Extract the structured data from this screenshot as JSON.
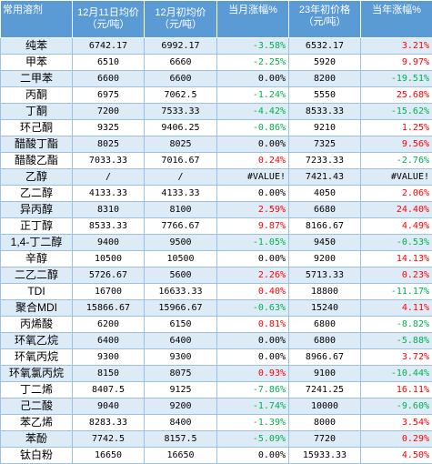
{
  "colors": {
    "header_bg": "#5b9bd5",
    "odd_row_bg": "#ddebf7",
    "even_row_bg": "#ffffff",
    "up": "#ff0000",
    "down": "#00b050"
  },
  "headers": [
    "常用溶剂",
    "12月11日均价（元/吨）",
    "12月初均价（元/吨）",
    "当月涨幅%",
    "23年初价格（元/吨）",
    "当年涨幅%"
  ],
  "rows": [
    {
      "name": "纯苯",
      "price_dec11": "6742.17",
      "price_dec_start": "6992.17",
      "mtd_change": "-3.58%",
      "price_23_start": "6532.17",
      "ytd_change": "3.21%"
    },
    {
      "name": "甲苯",
      "price_dec11": "6510",
      "price_dec_start": "6660",
      "mtd_change": "-2.25%",
      "price_23_start": "5920",
      "ytd_change": "9.97%"
    },
    {
      "name": "二甲苯",
      "price_dec11": "6600",
      "price_dec_start": "6600",
      "mtd_change": "0.00%",
      "price_23_start": "8200",
      "ytd_change": "-19.51%"
    },
    {
      "name": "丙酮",
      "price_dec11": "6975",
      "price_dec_start": "7062.5",
      "mtd_change": "-1.24%",
      "price_23_start": "5550",
      "ytd_change": "25.68%"
    },
    {
      "name": "丁酮",
      "price_dec11": "7200",
      "price_dec_start": "7533.33",
      "mtd_change": "-4.42%",
      "price_23_start": "8533.33",
      "ytd_change": "-15.62%"
    },
    {
      "name": "环己酮",
      "price_dec11": "9325",
      "price_dec_start": "9406.25",
      "mtd_change": "-0.86%",
      "price_23_start": "9210",
      "ytd_change": "1.25%"
    },
    {
      "name": "醋酸丁酯",
      "price_dec11": "8025",
      "price_dec_start": "8025",
      "mtd_change": "0.00%",
      "price_23_start": "7325",
      "ytd_change": "9.56%"
    },
    {
      "name": "醋酸乙酯",
      "price_dec11": "7033.33",
      "price_dec_start": "7016.67",
      "mtd_change": "0.24%",
      "price_23_start": "7233.33",
      "ytd_change": "-2.76%"
    },
    {
      "name": "乙醇",
      "price_dec11": "/",
      "price_dec_start": "/",
      "mtd_change": "#VALUE!",
      "price_23_start": "7421.43",
      "ytd_change": "#VALUE!"
    },
    {
      "name": "乙二醇",
      "price_dec11": "4133.33",
      "price_dec_start": "4133.33",
      "mtd_change": "0.00%",
      "price_23_start": "4050",
      "ytd_change": "2.06%"
    },
    {
      "name": "异丙醇",
      "price_dec11": "8310",
      "price_dec_start": "8100",
      "mtd_change": "2.59%",
      "price_23_start": "6680",
      "ytd_change": "24.40%"
    },
    {
      "name": "正丁醇",
      "price_dec11": "8533.33",
      "price_dec_start": "7766.67",
      "mtd_change": "9.87%",
      "price_23_start": "8166.67",
      "ytd_change": "4.49%"
    },
    {
      "name": "1,4-丁二醇",
      "price_dec11": "9400",
      "price_dec_start": "9500",
      "mtd_change": "-1.05%",
      "price_23_start": "9450",
      "ytd_change": "-0.53%"
    },
    {
      "name": "辛醇",
      "price_dec11": "10500",
      "price_dec_start": "10500",
      "mtd_change": "0.00%",
      "price_23_start": "9200",
      "ytd_change": "14.13%"
    },
    {
      "name": "二乙二醇",
      "price_dec11": "5726.67",
      "price_dec_start": "5600",
      "mtd_change": "2.26%",
      "price_23_start": "5713.33",
      "ytd_change": "0.23%"
    },
    {
      "name": "TDI",
      "price_dec11": "16700",
      "price_dec_start": "16633.33",
      "mtd_change": "0.40%",
      "price_23_start": "18800",
      "ytd_change": "-11.17%"
    },
    {
      "name": "聚合MDI",
      "price_dec11": "15866.67",
      "price_dec_start": "15966.67",
      "mtd_change": "-0.63%",
      "price_23_start": "15240",
      "ytd_change": "4.11%"
    },
    {
      "name": "丙烯酸",
      "price_dec11": "6200",
      "price_dec_start": "6150",
      "mtd_change": "0.81%",
      "price_23_start": "6800",
      "ytd_change": "-8.82%"
    },
    {
      "name": "环氧乙烷",
      "price_dec11": "6400",
      "price_dec_start": "6400",
      "mtd_change": "0.00%",
      "price_23_start": "6800",
      "ytd_change": "-5.88%"
    },
    {
      "name": "环氧丙烷",
      "price_dec11": "9300",
      "price_dec_start": "9300",
      "mtd_change": "0.00%",
      "price_23_start": "8966.67",
      "ytd_change": "3.72%"
    },
    {
      "name": "环氧氯丙烷",
      "price_dec11": "8150",
      "price_dec_start": "8075",
      "mtd_change": "0.93%",
      "price_23_start": "9100",
      "ytd_change": "-10.44%"
    },
    {
      "name": "丁二烯",
      "price_dec11": "8407.5",
      "price_dec_start": "9125",
      "mtd_change": "-7.86%",
      "price_23_start": "7241.25",
      "ytd_change": "16.11%"
    },
    {
      "name": "己二酸",
      "price_dec11": "9040",
      "price_dec_start": "9200",
      "mtd_change": "-1.74%",
      "price_23_start": "10000",
      "ytd_change": "-9.60%"
    },
    {
      "name": "苯乙烯",
      "price_dec11": "8283.33",
      "price_dec_start": "8400",
      "mtd_change": "-1.39%",
      "price_23_start": "8000",
      "ytd_change": "3.54%"
    },
    {
      "name": "苯酚",
      "price_dec11": "7742.5",
      "price_dec_start": "8157.5",
      "mtd_change": "-5.09%",
      "price_23_start": "7720",
      "ytd_change": "0.29%"
    },
    {
      "name": "钛白粉",
      "price_dec11": "16650",
      "price_dec_start": "16650",
      "mtd_change": "0.00%",
      "price_23_start": "15933.33",
      "ytd_change": "4.50%"
    }
  ]
}
